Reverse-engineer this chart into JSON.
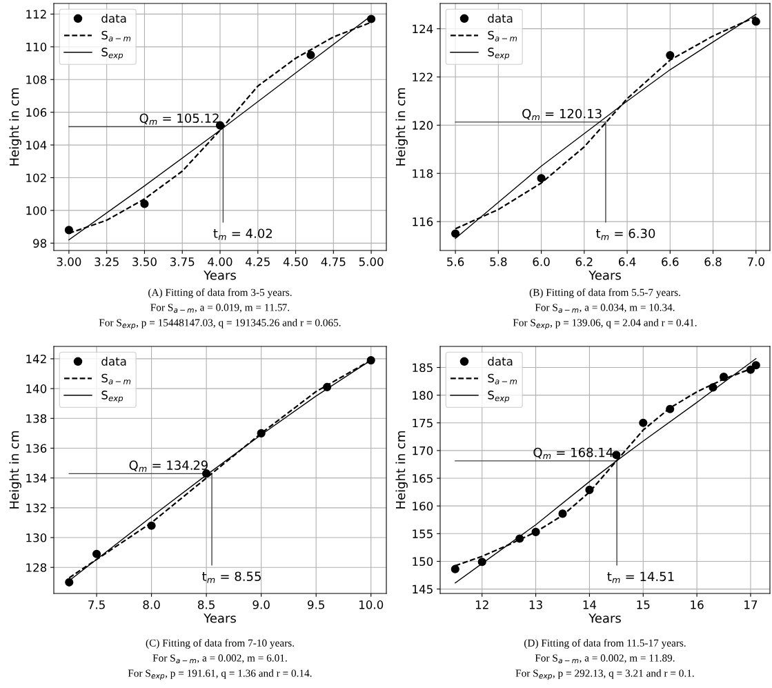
{
  "chart_data": [
    {
      "type": "line",
      "xlabel": "Years",
      "ylabel": "Height in cm",
      "xlim": [
        2.9,
        5.1
      ],
      "ylim": [
        97.55,
        112.65
      ],
      "xticks": [
        {
          "value": 3.0,
          "label": "3.00"
        },
        {
          "value": 3.25,
          "label": "3.25"
        },
        {
          "value": 3.5,
          "label": "3.50"
        },
        {
          "value": 3.75,
          "label": "3.75"
        },
        {
          "value": 4.0,
          "label": "4.00"
        },
        {
          "value": 4.25,
          "label": "4.25"
        },
        {
          "value": 4.5,
          "label": "4.50"
        },
        {
          "value": 4.75,
          "label": "4.75"
        },
        {
          "value": 5.0,
          "label": "5.00"
        }
      ],
      "yticks": [
        98,
        100,
        102,
        104,
        106,
        108,
        110,
        112
      ],
      "grid": true,
      "legend": "top left",
      "series": [
        {
          "name": "data",
          "type": "scatter",
          "marker": "circle",
          "color": "#000000",
          "x": [
            3.0,
            3.5,
            4.0,
            4.6,
            5.0
          ],
          "values": [
            98.8,
            100.4,
            105.2,
            109.5,
            111.7
          ]
        },
        {
          "name": "S$_{a−m}$",
          "line_style": "dashed",
          "color": "#000000",
          "x": [
            3.0,
            3.25,
            3.5,
            3.75,
            4.0,
            4.25,
            4.5,
            4.75,
            5.0
          ],
          "values": [
            98.6,
            99.4,
            100.7,
            102.4,
            104.9,
            107.6,
            109.3,
            110.6,
            111.5
          ]
        },
        {
          "name": "S$_{exp}$",
          "line_style": "solid",
          "color": "#000000",
          "x": [
            3.0,
            3.5,
            4.0,
            4.5,
            5.0
          ],
          "values": [
            98.2,
            101.5,
            104.9,
            108.4,
            111.9
          ]
        }
      ],
      "ref_lines": [
        {
          "axis": "y",
          "value": 105.12,
          "label": "Q$_{m}$ = 105.12",
          "color": "#404040"
        },
        {
          "axis": "x",
          "value": 4.02,
          "label": "t$_{m}$ = 4.02",
          "color": "#404040"
        }
      ],
      "annotations": [
        "(A) Fitting of data from 3-5 years.",
        "For S$_{a−m}$, a = 0.019, m = 11.57.",
        "For S$_{exp}$, p = 15448147.03, q = 191345.26 and r = 0.065."
      ]
    },
    {
      "type": "line",
      "xlabel": "Years",
      "ylabel": "Height in cm",
      "xlim": [
        5.529,
        7.065
      ],
      "ylim": [
        114.8,
        125.05
      ],
      "xticks": [
        {
          "value": 5.6,
          "label": "5.6"
        },
        {
          "value": 5.8,
          "label": "5.8"
        },
        {
          "value": 6.0,
          "label": "6.0"
        },
        {
          "value": 6.2,
          "label": "6.2"
        },
        {
          "value": 6.4,
          "label": "6.4"
        },
        {
          "value": 6.6,
          "label": "6.6"
        },
        {
          "value": 6.8,
          "label": "6.8"
        },
        {
          "value": 7.0,
          "label": "7.0"
        }
      ],
      "yticks": [
        116,
        118,
        120,
        122,
        124
      ],
      "grid": true,
      "legend": "top left",
      "series": [
        {
          "name": "data",
          "type": "scatter",
          "marker": "circle",
          "color": "#000000",
          "x": [
            5.6,
            6.0,
            6.6,
            7.0
          ],
          "values": [
            115.5,
            117.8,
            122.9,
            124.3
          ]
        },
        {
          "name": "S$_{a−m}$",
          "line_style": "dashed",
          "color": "#000000",
          "x": [
            5.6,
            5.8,
            6.0,
            6.2,
            6.3,
            6.4,
            6.6,
            6.8,
            7.0
          ],
          "values": [
            115.7,
            116.5,
            117.6,
            119.1,
            120.1,
            121.1,
            122.7,
            123.7,
            124.5
          ]
        },
        {
          "name": "S$_{exp}$",
          "line_style": "solid",
          "color": "#000000",
          "x": [
            5.6,
            6.0,
            6.4,
            6.6,
            7.0
          ],
          "values": [
            115.3,
            118.3,
            121.0,
            122.3,
            124.6
          ]
        }
      ],
      "ref_lines": [
        {
          "axis": "y",
          "value": 120.13,
          "label": "Q$_{m}$ = 120.13",
          "color": "#404040"
        },
        {
          "axis": "x",
          "value": 6.3,
          "label": "t$_{m}$ = 6.30",
          "color": "#404040"
        }
      ],
      "annotations": [
        "(B) Fitting of data from 5.5-7 years.",
        "For S$_{a−m}$, a = 0.034, m = 10.34.",
        "For S$_{exp}$, p = 139.06, q = 2.04 and r = 0.41."
      ]
    },
    {
      "type": "line",
      "xlabel": "Years",
      "ylabel": "Height in cm",
      "xlim": [
        7.11,
        10.14
      ],
      "ylim": [
        126.25,
        142.83
      ],
      "xticks": [
        {
          "value": 7.5,
          "label": "7.5"
        },
        {
          "value": 8.0,
          "label": "8.0"
        },
        {
          "value": 8.5,
          "label": "8.5"
        },
        {
          "value": 9.0,
          "label": "9.0"
        },
        {
          "value": 9.5,
          "label": "9.5"
        },
        {
          "value": 10.0,
          "label": "10.0"
        }
      ],
      "yticks": [
        128,
        130,
        132,
        134,
        136,
        138,
        140,
        142
      ],
      "grid": true,
      "legend": "top left",
      "series": [
        {
          "name": "data",
          "type": "scatter",
          "marker": "circle",
          "color": "#000000",
          "x": [
            7.25,
            7.5,
            8.0,
            8.5,
            9.0,
            9.6,
            10.0
          ],
          "values": [
            127.0,
            128.9,
            130.8,
            134.3,
            137.0,
            140.1,
            141.9
          ]
        },
        {
          "name": "S$_{a−m}$",
          "line_style": "dashed",
          "color": "#000000",
          "x": [
            7.25,
            8.0,
            8.5,
            9.0,
            9.5,
            10.0
          ],
          "values": [
            127.3,
            131.0,
            134.0,
            137.0,
            139.8,
            141.9
          ]
        },
        {
          "name": "S$_{exp}$",
          "line_style": "solid",
          "color": "#000000",
          "x": [
            7.25,
            8.0,
            8.5,
            9.0,
            9.5,
            10.0
          ],
          "values": [
            127.1,
            131.4,
            134.2,
            136.9,
            139.5,
            141.9
          ]
        }
      ],
      "ref_lines": [
        {
          "axis": "y",
          "value": 134.29,
          "label": "Q$_{m}$ = 134.29",
          "color": "#404040"
        },
        {
          "axis": "x",
          "value": 8.55,
          "label": "t$_{m}$ = 8.55",
          "color": "#404040"
        }
      ],
      "annotations": [
        "(C) Fitting of data from 7-10 years.",
        "For S$_{a−m}$, a = 0.002, m = 6.01.",
        "For S$_{exp}$, p = 191.61, q = 1.36 and r = 0.14."
      ]
    },
    {
      "type": "line",
      "xlabel": "Years",
      "ylabel": "Height in cm",
      "xlim": [
        11.22,
        17.36
      ],
      "ylim": [
        144.2,
        188.8
      ],
      "xticks": [
        12,
        13,
        14,
        15,
        16,
        17
      ],
      "yticks": [
        145,
        150,
        155,
        160,
        165,
        170,
        175,
        180,
        185
      ],
      "grid": true,
      "legend": "top left",
      "series": [
        {
          "name": "data",
          "type": "scatter",
          "marker": "circle",
          "color": "#000000",
          "x": [
            11.5,
            12,
            12.7,
            13,
            13.5,
            14,
            14.5,
            15,
            15.5,
            16.3,
            16.5,
            17,
            17.1
          ],
          "values": [
            148.6,
            149.9,
            154.1,
            155.3,
            158.6,
            162.9,
            169.2,
            175.0,
            177.5,
            181.4,
            183.3,
            184.6,
            185.4
          ]
        },
        {
          "name": "S$_{a−m}$",
          "line_style": "dashed",
          "color": "#000000",
          "x": [
            11.5,
            12,
            12.5,
            13,
            13.5,
            14,
            14.5,
            15,
            15.5,
            16,
            16.5,
            17.1
          ],
          "values": [
            149.2,
            150.9,
            153.0,
            155.3,
            158.3,
            162.5,
            168.1,
            173.7,
            177.7,
            180.6,
            182.9,
            185.1
          ]
        },
        {
          "name": "S$_{exp}$",
          "line_style": "solid",
          "color": "#000000",
          "x": [
            11.5,
            12,
            13,
            14,
            14.5,
            15,
            16,
            17.1
          ],
          "values": [
            146.1,
            149.6,
            156.6,
            164.4,
            168.1,
            171.7,
            178.7,
            186.6
          ]
        }
      ],
      "ref_lines": [
        {
          "axis": "y",
          "value": 168.14,
          "label": "Q$_{m}$ = 168.14",
          "color": "#404040"
        },
        {
          "axis": "x",
          "value": 14.51,
          "label": "t$_{m}$ = 14.51",
          "color": "#404040"
        }
      ],
      "annotations": [
        "(D) Fitting of data from 11.5-17 years.",
        "For S$_{a−m}$, a = 0.002, m = 11.89.",
        "For S$_{exp}$, p = 292.13, q = 3.21 and r = 0.1."
      ]
    }
  ]
}
